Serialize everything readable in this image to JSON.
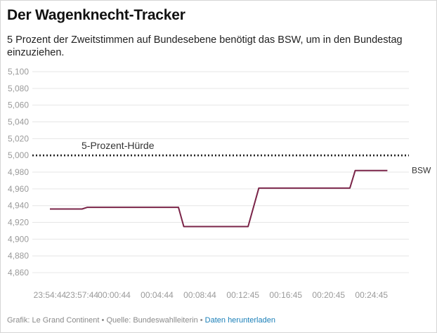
{
  "header": {
    "title": "Der Wagenknecht-Tracker",
    "subtitle": "5 Prozent der Zweitstimmen auf Bundesebene benötigt das BSW, um in den Bundestag einzuziehen."
  },
  "footer": {
    "credit": "Grafik: Le Grand Continent",
    "separator": " • ",
    "source": "Quelle: Bundeswahlleiterin",
    "download_label": "Daten herunterladen"
  },
  "colors": {
    "series": "#7a2448",
    "threshold": "#222222",
    "link": "#1a7fb8"
  },
  "chart_data": {
    "type": "line",
    "title": "Der Wagenknecht-Tracker",
    "xlabel": "",
    "ylabel": "",
    "ylim": [
      4.85,
      5.1
    ],
    "y_ticks": [
      5.1,
      5.08,
      5.06,
      5.04,
      5.02,
      5.0,
      4.98,
      4.96,
      4.94,
      4.92,
      4.9,
      4.88,
      4.86
    ],
    "y_tick_labels": [
      "5,100",
      "5,080",
      "5,060",
      "5,040",
      "5,020",
      "5,000",
      "4,980",
      "4,960",
      "4,940",
      "4,920",
      "4,900",
      "4,880",
      "4,860"
    ],
    "x_ticks": [
      "23:54:44",
      "23:57:44",
      "00:00:44",
      "00:04:44",
      "00:08:44",
      "00:12:45",
      "00:16:45",
      "00:20:45",
      "00:24:45"
    ],
    "grid": true,
    "threshold": {
      "value": 5.0,
      "label": "5-Prozent-Hürde",
      "style": "dotted"
    },
    "series": [
      {
        "name": "BSW",
        "points": [
          {
            "x": "23:54:44",
            "y": 4.936
          },
          {
            "x": "23:57:44",
            "y": 4.936
          },
          {
            "x": "23:58:14",
            "y": 4.938
          },
          {
            "x": "00:06:44",
            "y": 4.938
          },
          {
            "x": "00:07:14",
            "y": 4.915
          },
          {
            "x": "00:13:14",
            "y": 4.915
          },
          {
            "x": "00:14:14",
            "y": 4.961
          },
          {
            "x": "00:22:44",
            "y": 4.961
          },
          {
            "x": "00:23:14",
            "y": 4.982
          },
          {
            "x": "00:26:14",
            "y": 4.982
          }
        ]
      }
    ]
  }
}
